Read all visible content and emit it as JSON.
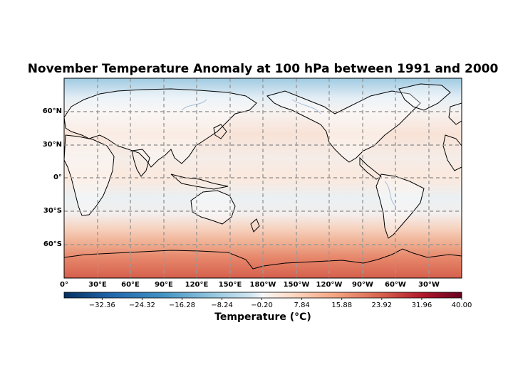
{
  "title": "November Temperature Anomaly at 100 hPa between 1991 and 2000",
  "lat_ticks": [
    "60°N",
    "30°N",
    "0°",
    "30°S",
    "60°S"
  ],
  "lon_ticks": [
    "0°",
    "30°E",
    "60°E",
    "90°E",
    "120°E",
    "150°E",
    "180°W",
    "150°W",
    "120°W",
    "90°W",
    "60°W",
    "30°W"
  ],
  "colorbar": {
    "label": "Temperature (°C)",
    "min": -40.0,
    "max": 40.0,
    "ticks": [
      "−32.36",
      "−24.32",
      "−16.28",
      "−8.24",
      "−0.20",
      "7.84",
      "15.88",
      "23.92",
      "31.96",
      "40.00"
    ],
    "tick_values": [
      -32.36,
      -24.32,
      -16.28,
      -8.24,
      -0.2,
      7.84,
      15.88,
      23.92,
      31.96,
      40.0
    ],
    "colormap": "RdBu_r"
  },
  "projection": "PlateCarree, central longitude 180°",
  "gridlines": "dashed gray"
}
